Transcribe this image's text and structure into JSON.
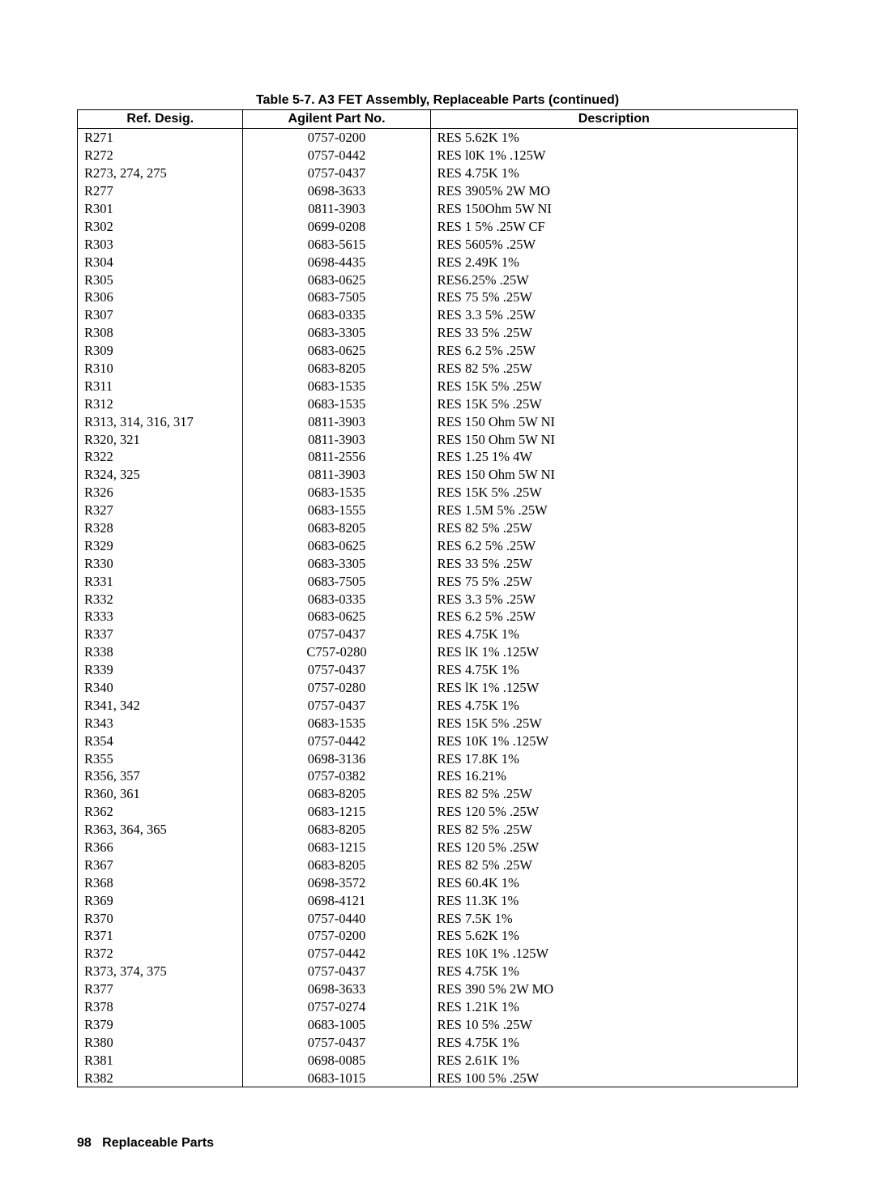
{
  "title": "Table 5-7.  A3 FET Assembly, Replaceable Parts (continued)",
  "columns": [
    "Ref. Desig.",
    "Agilent Part No.",
    "Description"
  ],
  "rows": [
    [
      "R271",
      "0757-0200",
      "RES 5.62K 1%"
    ],
    [
      "R272",
      "0757-0442",
      "RES l0K 1% .125W"
    ],
    [
      "R273, 274, 275",
      "0757-0437",
      "RES 4.75K 1%"
    ],
    [
      "R277",
      "0698-3633",
      "RES 3905% 2W MO"
    ],
    [
      "R301",
      "0811-3903",
      "RES 150Ohm 5W NI"
    ],
    [
      "R302",
      "0699-0208",
      "RES 1 5% .25W CF"
    ],
    [
      "R303",
      "0683-5615",
      "RES 5605% .25W"
    ],
    [
      "R304",
      "0698-4435",
      "RES 2.49K 1%"
    ],
    [
      "R305",
      "0683-0625",
      "RES6.25% .25W"
    ],
    [
      "R306",
      "0683-7505",
      "RES 75 5% .25W"
    ],
    [
      "R307",
      "0683-0335",
      "RES 3.3 5% .25W"
    ],
    [
      "R308",
      "0683-3305",
      "RES 33 5% .25W"
    ],
    [
      "R309",
      "0683-0625",
      "RES 6.2 5% .25W"
    ],
    [
      "R310",
      "0683-8205",
      "RES 82 5% .25W"
    ],
    [
      "R311",
      "0683-1535",
      "RES 15K 5% .25W"
    ],
    [
      "R312",
      "0683-1535",
      "RES 15K 5% .25W"
    ],
    [
      "R313, 314, 316, 317",
      "0811-3903",
      "RES 150 Ohm 5W NI"
    ],
    [
      "R320, 321",
      "0811-3903",
      "RES 150 Ohm 5W NI"
    ],
    [
      "R322",
      "0811-2556",
      "RES 1.25 1% 4W"
    ],
    [
      "R324, 325",
      "0811-3903",
      "RES 150 Ohm 5W NI"
    ],
    [
      "R326",
      "0683-1535",
      "RES 15K 5% .25W"
    ],
    [
      "R327",
      "0683-1555",
      "RES 1.5M 5% .25W"
    ],
    [
      "R328",
      "0683-8205",
      "RES 82 5% .25W"
    ],
    [
      "R329",
      "0683-0625",
      "RES 6.2 5% .25W"
    ],
    [
      "R330",
      "0683-3305",
      "RES 33 5% .25W"
    ],
    [
      "R331",
      "0683-7505",
      "RES 75 5% .25W"
    ],
    [
      "R332",
      "0683-0335",
      "RES 3.3 5% .25W"
    ],
    [
      "R333",
      "0683-0625",
      "RES 6.2 5% .25W"
    ],
    [
      "R337",
      "0757-0437",
      "RES 4.75K 1%"
    ],
    [
      "R338",
      "C757-0280",
      "RES lK 1% .125W"
    ],
    [
      "R339",
      "0757-0437",
      "RES 4.75K 1%"
    ],
    [
      "R340",
      "0757-0280",
      "RES lK 1% .125W"
    ],
    [
      "R341, 342",
      "0757-0437",
      "RES 4.75K 1%"
    ],
    [
      "R343",
      "0683-1535",
      "RES 15K 5% .25W"
    ],
    [
      "R354",
      "0757-0442",
      "RES 10K 1% .125W"
    ],
    [
      "R355",
      "0698-3136",
      "RES 17.8K 1%"
    ],
    [
      "R356, 357",
      "0757-0382",
      "RES 16.21%"
    ],
    [
      "R360, 361",
      "0683-8205",
      "RES 82 5% .25W"
    ],
    [
      "R362",
      "0683-1215",
      "RES 120 5% .25W"
    ],
    [
      "R363, 364, 365",
      "0683-8205",
      "RES 82 5% .25W"
    ],
    [
      "R366",
      "0683-1215",
      "RES 120 5% .25W"
    ],
    [
      "R367",
      "0683-8205",
      "RES 82 5% .25W"
    ],
    [
      "R368",
      "0698-3572",
      "RES 60.4K 1%"
    ],
    [
      "R369",
      "0698-4121",
      "RES 11.3K 1%"
    ],
    [
      "R370",
      "0757-0440",
      "RES 7.5K 1%"
    ],
    [
      "R371",
      "0757-0200",
      "RES 5.62K 1%"
    ],
    [
      "R372",
      "0757-0442",
      "RES 10K 1% .125W"
    ],
    [
      "R373, 374, 375",
      "0757-0437",
      "RES 4.75K 1%"
    ],
    [
      "R377",
      "0698-3633",
      "RES 390 5% 2W MO"
    ],
    [
      "R378",
      "0757-0274",
      "RES 1.21K 1%"
    ],
    [
      "R379",
      "0683-1005",
      "RES 10 5% .25W"
    ],
    [
      "R380",
      "0757-0437",
      "RES 4.75K 1%"
    ],
    [
      "R381",
      "0698-0085",
      "RES 2.61K 1%"
    ],
    [
      "R382",
      "0683-1015",
      "RES 100 5% .25W"
    ]
  ],
  "footer_page": "98",
  "footer_title": "Replaceable Parts",
  "style": {
    "body_bg": "#ffffff",
    "text_color": "#000000",
    "border_color": "#000000",
    "title_font": "Arial",
    "title_fontsize": 16,
    "title_weight": "bold",
    "header_font": "Arial",
    "header_fontsize": 16,
    "header_weight": "bold",
    "cell_font": "Times New Roman",
    "cell_fontsize": 16.5,
    "col_widths_pct": [
      23,
      26,
      51
    ],
    "col_align": [
      "left",
      "center",
      "left"
    ],
    "footer_font": "Arial",
    "footer_fontsize": 16,
    "footer_weight": "bold"
  }
}
